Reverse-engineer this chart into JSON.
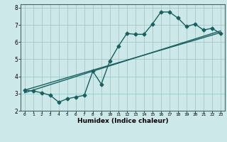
{
  "title": "",
  "xlabel": "Humidex (Indice chaleur)",
  "bg_color": "#cce8e8",
  "line_color": "#1a6060",
  "grid_color": "#99cccc",
  "xlim": [
    -0.5,
    23.5
  ],
  "ylim": [
    2,
    8.2
  ],
  "xticks": [
    0,
    1,
    2,
    3,
    4,
    5,
    6,
    7,
    8,
    9,
    10,
    11,
    12,
    13,
    14,
    15,
    16,
    17,
    18,
    19,
    20,
    21,
    22,
    23
  ],
  "yticks": [
    2,
    3,
    4,
    5,
    6,
    7,
    8
  ],
  "main_x": [
    0,
    1,
    2,
    3,
    4,
    5,
    6,
    7,
    8,
    9,
    10,
    11,
    12,
    13,
    14,
    15,
    16,
    17,
    18,
    19,
    20,
    21,
    22,
    23
  ],
  "main_y": [
    3.2,
    3.15,
    3.05,
    2.9,
    2.5,
    2.7,
    2.8,
    2.9,
    4.3,
    3.55,
    4.9,
    5.75,
    6.5,
    6.45,
    6.45,
    7.05,
    7.75,
    7.75,
    7.4,
    6.9,
    7.05,
    6.7,
    6.8,
    6.5
  ],
  "line1_x": [
    0,
    23
  ],
  "line1_y": [
    3.2,
    6.55
  ],
  "line2_x": [
    0,
    23
  ],
  "line2_y": [
    3.05,
    6.65
  ],
  "marker_size": 2.5,
  "lw": 1.0
}
